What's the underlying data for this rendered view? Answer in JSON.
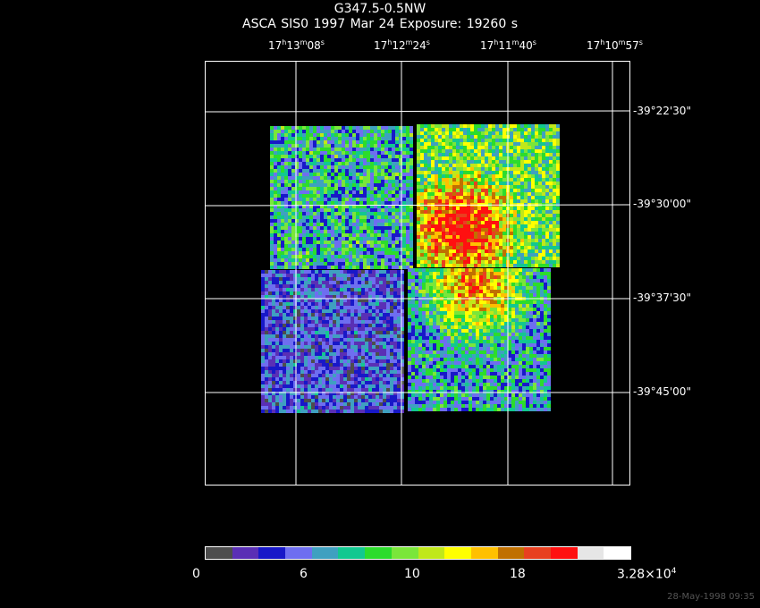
{
  "header": {
    "target": "G347.5-0.5NW",
    "line2": "ASCA SIS0    1997 Mar 24    Exposure: 19260 s"
  },
  "ra_ticks": [
    {
      "h": "17",
      "m": "13",
      "s": "08"
    },
    {
      "h": "17",
      "m": "12",
      "s": "24"
    },
    {
      "h": "17",
      "m": "11",
      "s": "40"
    },
    {
      "h": "17",
      "m": "10",
      "s": "57"
    }
  ],
  "dec_ticks": [
    "-39°22'30\"",
    "-39°30'00\"",
    "-39°37'30\"",
    "-39°45'00\""
  ],
  "colorbar": {
    "colors": [
      "#4d4d4d",
      "#5a2fb5",
      "#1818c8",
      "#6e6ef0",
      "#3fa0c0",
      "#12c890",
      "#2cdc2c",
      "#7ae63a",
      "#c0e81a",
      "#ffff00",
      "#ffc000",
      "#c07000",
      "#e84020",
      "#ff1010",
      "#e6e6e6",
      "#ffffff"
    ],
    "labels": [
      {
        "text": "0"
      },
      {
        "text": "6"
      },
      {
        "text": "10"
      },
      {
        "text": "18"
      },
      {
        "text": "3.28×10",
        "sup": "4"
      }
    ]
  },
  "footer": {
    "timestamp": "28-May-1998 09:35"
  }
}
